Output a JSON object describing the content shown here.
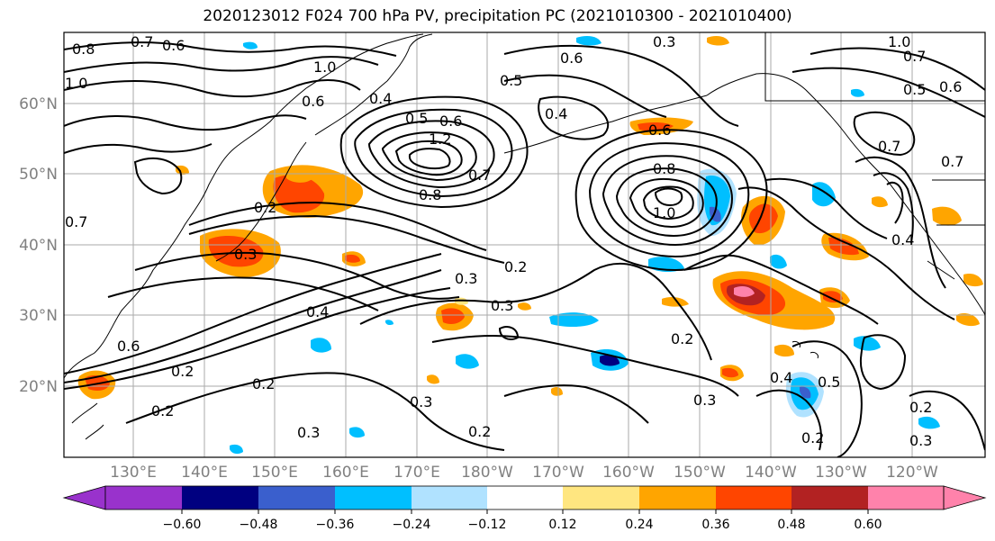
{
  "title": "2020123012 F024 700 hPa PV, precipitation PC (2021010300 - 2021010400)",
  "lat_labels": [
    "60°N",
    "50°N",
    "40°N",
    "30°N",
    "20°N"
  ],
  "lon_labels": [
    "130°E",
    "140°E",
    "150°E",
    "160°E",
    "170°E",
    "180°W",
    "170°W",
    "160°W",
    "150°W",
    "140°W",
    "130°W",
    "120°W"
  ],
  "contour_labels": [
    "0.8",
    "0.7",
    "0.6",
    "1.0",
    "1.0",
    "0.6",
    "0.4",
    "0.5",
    "0.6",
    "0.3",
    "0.5",
    "0.4",
    "1.2",
    "0.7",
    "0.8",
    "0.6",
    "0.6",
    "0.8",
    "1.0",
    "0.7",
    "0.5",
    "0.7",
    "0.6",
    "1.0",
    "0.7",
    "0.2",
    "0.3",
    "0.3",
    "0.2",
    "0.3",
    "0.4",
    "0.6",
    "0.2",
    "0.2",
    "0.3",
    "0.2",
    "0.3",
    "0.2",
    "0.3",
    "0.4",
    "0.5",
    "0.2",
    "0.2",
    "0.3",
    "0.4",
    "0.2",
    "0.7"
  ],
  "colorbar": {
    "ticks": [
      "−0.60",
      "−0.48",
      "−0.36",
      "−0.24",
      "−0.12",
      "0.12",
      "0.24",
      "0.36",
      "0.48",
      "0.60"
    ],
    "colors": [
      "#9932cc",
      "#000080",
      "#3a5fcd",
      "#00bfff",
      "#b0e2ff",
      "#ffffff",
      "#ffe680",
      "#ffa500",
      "#ff4500",
      "#b22222",
      "#ff82ab"
    ]
  },
  "colors": {
    "gridline": "#aaaaaa",
    "contour": "#000000",
    "coast": "#000000",
    "label_gray": "#808080"
  }
}
